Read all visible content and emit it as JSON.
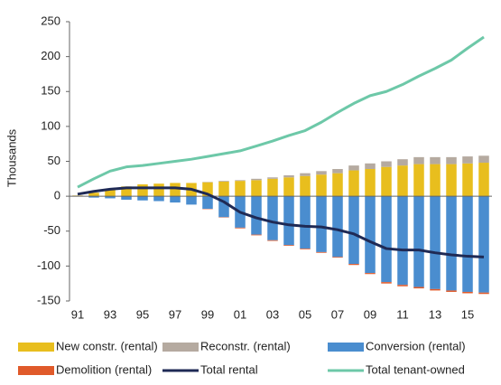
{
  "chart_data": {
    "type": "bar",
    "stacked": true,
    "y_label": "Thousands",
    "categories": [
      "91",
      null,
      "93",
      null,
      "95",
      null,
      "97",
      null,
      "99",
      null,
      "01",
      null,
      "03",
      null,
      "05",
      null,
      "07",
      null,
      "09",
      null,
      "11",
      null,
      "13",
      null,
      "15",
      null
    ],
    "series": [
      {
        "name": "New constr. (rental)",
        "type": "bar",
        "color": "#e8be1e",
        "values": [
          1,
          5,
          10,
          14,
          17,
          18,
          19,
          19,
          20,
          21,
          22,
          23,
          25,
          27,
          29,
          31,
          33,
          37,
          39,
          42,
          44,
          46,
          46,
          46,
          47,
          48
        ]
      },
      {
        "name": "Reconstr. (rental)",
        "type": "bar",
        "color": "#b5aaa0",
        "values": [
          0,
          0,
          0,
          0,
          0,
          0,
          0,
          0,
          0.5,
          1,
          1,
          2,
          2,
          3,
          4,
          5,
          6,
          7,
          8,
          8,
          9,
          10,
          10,
          10,
          10,
          10
        ]
      },
      {
        "name": "Conversion (rental)",
        "type": "bar",
        "color": "#4a8dcf",
        "values": [
          0,
          -2,
          -3,
          -5,
          -6,
          -7,
          -9,
          -12,
          -18,
          -30,
          -45,
          -55,
          -63,
          -70,
          -75,
          -80,
          -87,
          -97,
          -110,
          -123,
          -127,
          -130,
          -133,
          -135,
          -137,
          -138
        ]
      },
      {
        "name": "Demolition (rental)",
        "type": "bar",
        "color": "#e05a2a",
        "values": [
          0,
          0,
          0,
          0,
          0,
          0,
          0,
          0,
          -0.5,
          -0.5,
          -1,
          -1,
          -1,
          -1,
          -1,
          -1,
          -1,
          -1.5,
          -1.5,
          -2,
          -2,
          -2,
          -2,
          -2,
          -2,
          -2
        ]
      },
      {
        "name": "Total rental",
        "type": "line",
        "color": "#1f2a55",
        "values": [
          3,
          7,
          10,
          12,
          12,
          12,
          12,
          10,
          3,
          -8,
          -23,
          -31,
          -37,
          -41,
          -43,
          -44,
          -48,
          -54,
          -65,
          -75,
          -77,
          -77,
          -81,
          -84,
          -86,
          -87
        ]
      },
      {
        "name": "Total tenant-owned",
        "type": "line",
        "color": "#6dc8a8",
        "values": [
          13,
          25,
          36,
          42,
          44,
          47,
          50,
          53,
          57,
          61,
          65,
          72,
          79,
          87,
          94,
          106,
          120,
          133,
          144,
          150,
          160,
          172,
          183,
          195,
          212,
          228
        ]
      }
    ],
    "ylim": [
      -150,
      250
    ],
    "yticks": [
      -150,
      -100,
      -50,
      0,
      50,
      100,
      150,
      200,
      250
    ],
    "grid": false
  }
}
